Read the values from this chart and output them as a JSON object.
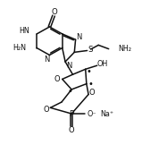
{
  "bg_color": "#ffffff",
  "line_color": "#111111",
  "line_width": 1.1,
  "figsize": [
    1.87,
    1.62
  ],
  "dpi": 100,
  "xlim": [
    0,
    10
  ],
  "ylim": [
    0,
    8.6
  ]
}
